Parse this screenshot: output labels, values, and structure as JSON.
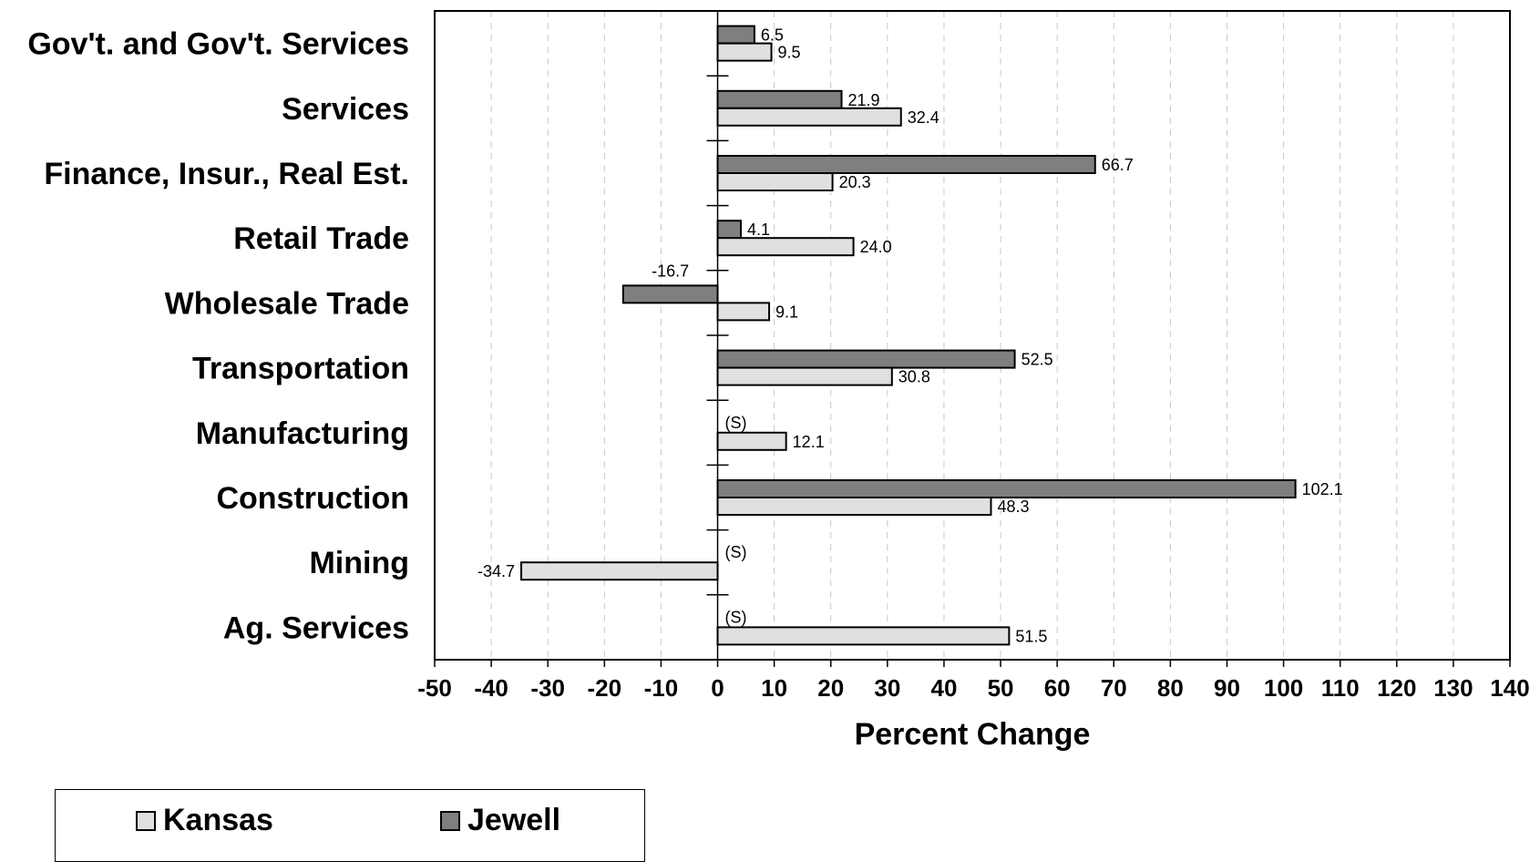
{
  "chart_data": {
    "type": "bar",
    "orientation": "horizontal",
    "title": "",
    "xlabel": "Percent Change",
    "ylabel": "",
    "xlim": [
      -50,
      140
    ],
    "x_ticks": [
      "-50",
      "-40",
      "-30",
      "-20",
      "-10",
      "0",
      "10",
      "20",
      "30",
      "40",
      "50",
      "60",
      "70",
      "80",
      "90",
      "100",
      "110",
      "120",
      "130",
      "140"
    ],
    "grid": "vertical dashed",
    "legend_position": "bottom-left",
    "categories": [
      "Gov't. and Gov't. Services",
      "Services",
      "Finance, Insur., Real Est.",
      "Retail Trade",
      "Wholesale Trade",
      "Transportation",
      "Manufacturing",
      "Construction",
      "Mining",
      "Ag. Services"
    ],
    "series": [
      {
        "name": "Jewell",
        "color": "#7f7f7f",
        "values": [
          6.5,
          21.9,
          66.7,
          4.1,
          -16.7,
          52.5,
          null,
          102.1,
          null,
          null
        ],
        "labels": [
          "6.5",
          "21.9",
          "66.7",
          "4.1",
          "-16.7",
          "52.5",
          "(S)",
          "102.1",
          "(S)",
          "(S)"
        ]
      },
      {
        "name": "Kansas",
        "color": "#e0e0e0",
        "values": [
          9.5,
          32.4,
          20.3,
          24.0,
          9.1,
          30.8,
          12.1,
          48.3,
          -34.7,
          51.5
        ],
        "labels": [
          "9.5",
          "32.4",
          "20.3",
          "24.0",
          "9.1",
          "30.8",
          "12.1",
          "48.3",
          "-34.7",
          "51.5"
        ]
      }
    ]
  },
  "legend": {
    "kansas_label": "Kansas",
    "jewell_label": "Jewell",
    "kansas_color": "#e0e0e0",
    "jewell_color": "#7f7f7f"
  }
}
